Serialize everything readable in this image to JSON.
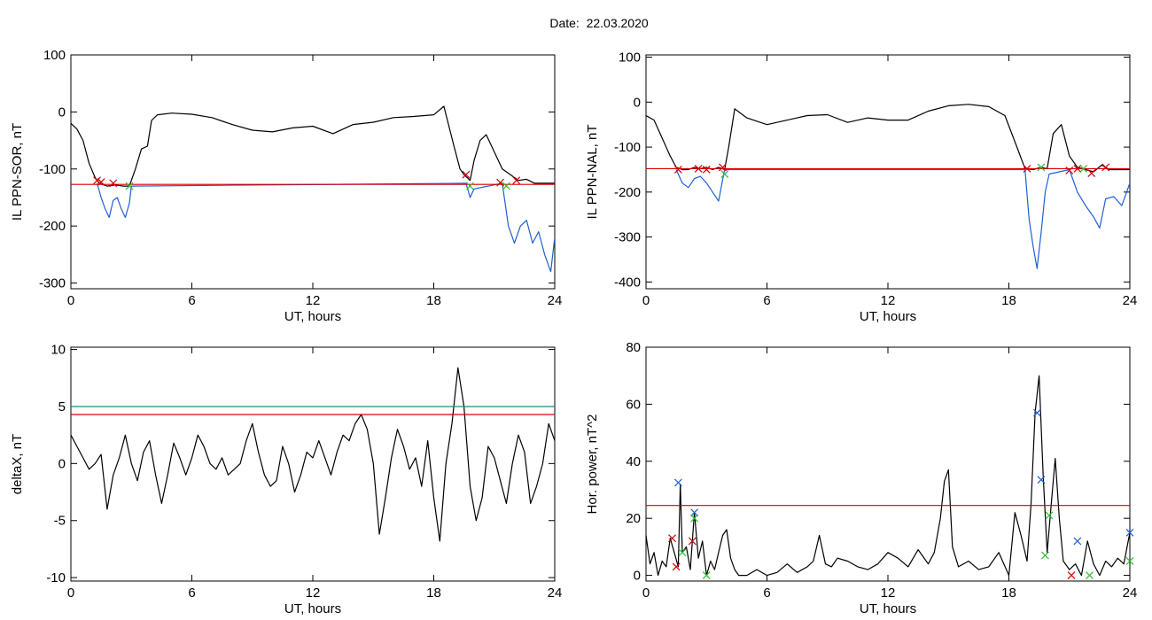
{
  "header": {
    "title": "Date:  22.03.2020"
  },
  "chart_data": [
    {
      "type": "line",
      "xlabel": "UT, hours",
      "ylabel": "IL PPN-SOR, nT",
      "xlim": [
        0,
        24
      ],
      "ylim": [
        -310,
        100
      ],
      "xticks": [
        0,
        6,
        12,
        18,
        24
      ],
      "yticks": [
        100,
        0,
        -100,
        -200,
        -300
      ],
      "series": [
        {
          "color": "#000000",
          "x": [
            0,
            0.3,
            0.6,
            0.9,
            1.2,
            1.4,
            1.8,
            2.2,
            2.6,
            2.9,
            3.2,
            3.5,
            3.8,
            4.0,
            4.3,
            5,
            6,
            7,
            8,
            9,
            10,
            11,
            12,
            13,
            14,
            15,
            16,
            17,
            18,
            18.5,
            19.0,
            19.3,
            19.5,
            19.8,
            20.0,
            20.3,
            20.6,
            21.0,
            21.4,
            21.8,
            22.2,
            22.6,
            23.0,
            23.5,
            23.8,
            24
          ],
          "y": [
            -20,
            -30,
            -50,
            -90,
            -115,
            -125,
            -130,
            -128,
            -130,
            -130,
            -100,
            -65,
            -60,
            -15,
            -5,
            -2,
            -4,
            -10,
            -22,
            -32,
            -35,
            -28,
            -25,
            -38,
            -22,
            -18,
            -10,
            -8,
            -5,
            10,
            -60,
            -100,
            -110,
            -120,
            -85,
            -50,
            -40,
            -70,
            -100,
            -110,
            -120,
            -118,
            -125,
            -125,
            -125,
            -125
          ]
        },
        {
          "color": "#1f5fd6",
          "x": [
            1.3,
            1.5,
            1.7,
            1.9,
            2.1,
            2.3,
            2.5,
            2.7,
            2.9,
            3.0,
            19.6,
            19.8,
            20.0,
            21.4,
            21.7,
            22.0,
            22.3,
            22.6,
            22.9,
            23.2,
            23.5,
            23.8,
            24
          ],
          "y": [
            -125,
            -150,
            -170,
            -185,
            -155,
            -150,
            -170,
            -185,
            -160,
            -130,
            -125,
            -150,
            -135,
            -125,
            -200,
            -230,
            -200,
            -190,
            -230,
            -210,
            -250,
            -280,
            -220
          ]
        }
      ],
      "hlines": [
        {
          "y": -127,
          "color": "#d40000"
        }
      ],
      "markers": [
        {
          "x": 1.3,
          "y": -120,
          "color": "#d40000"
        },
        {
          "x": 1.5,
          "y": -123,
          "color": "#d40000"
        },
        {
          "x": 2.1,
          "y": -125,
          "color": "#d40000"
        },
        {
          "x": 2.9,
          "y": -130,
          "color": "#33bb33"
        },
        {
          "x": 19.6,
          "y": -110,
          "color": "#d40000"
        },
        {
          "x": 19.8,
          "y": -130,
          "color": "#33bb33"
        },
        {
          "x": 21.3,
          "y": -124,
          "color": "#d40000"
        },
        {
          "x": 21.6,
          "y": -130,
          "color": "#33bb33"
        },
        {
          "x": 22.1,
          "y": -120,
          "color": "#d40000"
        }
      ]
    },
    {
      "type": "line",
      "xlabel": "UT, hours",
      "ylabel": "IL PPN-NAL, nT",
      "xlim": [
        0,
        24
      ],
      "ylim": [
        -415,
        105
      ],
      "xticks": [
        0,
        6,
        12,
        18,
        24
      ],
      "yticks": [
        100,
        0,
        -100,
        -200,
        -300,
        -400
      ],
      "series": [
        {
          "color": "#000000",
          "x": [
            0,
            0.4,
            0.8,
            1.2,
            1.5,
            1.8,
            2.1,
            2.4,
            2.7,
            3.0,
            3.3,
            3.6,
            3.9,
            4.1,
            4.4,
            5,
            6,
            7,
            8,
            9,
            10,
            11,
            12,
            13,
            14,
            15,
            16,
            17,
            17.8,
            18.4,
            18.8,
            19.2,
            19.6,
            19.9,
            20.2,
            20.6,
            21.0,
            21.4,
            21.8,
            22.2,
            22.6,
            23.0,
            23.4,
            23.8,
            24
          ],
          "y": [
            -30,
            -40,
            -80,
            -120,
            -145,
            -150,
            -150,
            -145,
            -148,
            -145,
            -150,
            -145,
            -150,
            -100,
            -15,
            -35,
            -50,
            -40,
            -30,
            -28,
            -45,
            -35,
            -40,
            -40,
            -20,
            -8,
            -5,
            -10,
            -30,
            -100,
            -148,
            -150,
            -145,
            -148,
            -70,
            -50,
            -120,
            -145,
            -150,
            -155,
            -140,
            -150,
            -150,
            -150,
            -150
          ]
        },
        {
          "color": "#1f5fd6",
          "x": [
            1.5,
            1.8,
            2.1,
            2.4,
            2.7,
            3.0,
            3.3,
            3.6,
            3.9,
            18.8,
            19.0,
            19.2,
            19.4,
            19.6,
            19.8,
            20.0,
            21.0,
            21.4,
            21.8,
            22.2,
            22.5,
            22.8,
            23.2,
            23.6,
            24
          ],
          "y": [
            -150,
            -180,
            -190,
            -170,
            -165,
            -180,
            -200,
            -220,
            -150,
            -150,
            -260,
            -320,
            -370,
            -290,
            -200,
            -160,
            -150,
            -200,
            -230,
            -255,
            -280,
            -215,
            -210,
            -230,
            -180
          ]
        }
      ],
      "hlines": [
        {
          "y": -148,
          "color": "#d40000"
        }
      ],
      "markers": [
        {
          "x": 1.6,
          "y": -150,
          "color": "#d40000"
        },
        {
          "x": 2.6,
          "y": -148,
          "color": "#d40000"
        },
        {
          "x": 3.0,
          "y": -150,
          "color": "#d40000"
        },
        {
          "x": 3.8,
          "y": -145,
          "color": "#d40000"
        },
        {
          "x": 3.9,
          "y": -160,
          "color": "#33bb33"
        },
        {
          "x": 18.9,
          "y": -148,
          "color": "#d40000"
        },
        {
          "x": 19.6,
          "y": -145,
          "color": "#33bb33"
        },
        {
          "x": 21.0,
          "y": -152,
          "color": "#d40000"
        },
        {
          "x": 21.4,
          "y": -148,
          "color": "#d40000"
        },
        {
          "x": 21.7,
          "y": -148,
          "color": "#33bb33"
        },
        {
          "x": 22.1,
          "y": -158,
          "color": "#d40000"
        },
        {
          "x": 22.8,
          "y": -145,
          "color": "#d40000"
        }
      ]
    },
    {
      "type": "line",
      "xlabel": "UT, hours",
      "ylabel": "deltaX, nT",
      "xlim": [
        0,
        24
      ],
      "ylim": [
        -10.3,
        10.2
      ],
      "xticks": [
        0,
        6,
        12,
        18,
        24
      ],
      "yticks": [
        10,
        5,
        0,
        -5,
        -10
      ],
      "series": [
        {
          "color": "#000000",
          "x": [
            0,
            0.3,
            0.6,
            0.9,
            1.2,
            1.5,
            1.8,
            2.1,
            2.4,
            2.7,
            3.0,
            3.3,
            3.6,
            3.9,
            4.2,
            4.5,
            4.8,
            5.1,
            5.4,
            5.7,
            6.0,
            6.3,
            6.6,
            6.9,
            7.2,
            7.5,
            7.8,
            8.1,
            8.4,
            8.7,
            9.0,
            9.3,
            9.6,
            9.9,
            10.2,
            10.5,
            10.8,
            11.1,
            11.4,
            11.7,
            12.0,
            12.3,
            12.6,
            12.9,
            13.2,
            13.5,
            13.8,
            14.1,
            14.4,
            14.7,
            15.0,
            15.3,
            15.6,
            15.9,
            16.2,
            16.5,
            16.8,
            17.1,
            17.4,
            17.7,
            18.0,
            18.3,
            18.6,
            18.9,
            19.2,
            19.5,
            19.8,
            20.1,
            20.4,
            20.7,
            21.0,
            21.3,
            21.6,
            21.9,
            22.2,
            22.5,
            22.8,
            23.1,
            23.4,
            23.7,
            24
          ],
          "y": [
            2.5,
            1.5,
            0.5,
            -0.5,
            0,
            0.8,
            -4,
            -1,
            0.5,
            2.5,
            0,
            -1.5,
            1,
            2,
            -1,
            -3.5,
            -1,
            1.8,
            0.5,
            -1,
            0.5,
            2.5,
            1.5,
            0,
            -0.5,
            0.5,
            -1,
            -0.5,
            0,
            2,
            3.5,
            1,
            -1,
            -2,
            -1.5,
            1.5,
            0,
            -2.5,
            -1,
            1,
            0.5,
            2,
            0.5,
            -1,
            1,
            2.5,
            2,
            3.5,
            4.3,
            3,
            0,
            -6.2,
            -3,
            0.5,
            3,
            1.5,
            -0.5,
            0.5,
            -2,
            2,
            -3,
            -6.8,
            0,
            3.5,
            8.4,
            5,
            -2,
            -5,
            -3,
            1.5,
            0.5,
            -1.5,
            -3.5,
            0,
            2.5,
            1,
            -3.5,
            -2,
            0,
            3.5,
            2
          ]
        }
      ],
      "hlines": [
        {
          "y": 5,
          "color": "#1a8a8a"
        },
        {
          "y": 4.3,
          "color": "#d40000"
        }
      ],
      "markers": []
    },
    {
      "type": "line",
      "xlabel": "UT, hours",
      "ylabel": "Hor. power, nT^2",
      "xlim": [
        0,
        24
      ],
      "ylim": [
        -2,
        80
      ],
      "xticks": [
        0,
        6,
        12,
        18,
        24
      ],
      "yticks": [
        80,
        60,
        40,
        20,
        0
      ],
      "series": [
        {
          "color": "#000000",
          "x": [
            0,
            0.2,
            0.4,
            0.6,
            0.8,
            1.0,
            1.2,
            1.4,
            1.6,
            1.7,
            1.8,
            2.0,
            2.2,
            2.4,
            2.6,
            2.8,
            3.0,
            3.2,
            3.4,
            3.6,
            3.8,
            4.0,
            4.2,
            4.4,
            4.6,
            5.0,
            5.5,
            6.0,
            6.5,
            7.0,
            7.5,
            8.0,
            8.3,
            8.6,
            8.9,
            9.2,
            9.5,
            10.0,
            10.5,
            11.0,
            11.5,
            12.0,
            12.5,
            13.0,
            13.5,
            14.0,
            14.3,
            14.6,
            14.8,
            15.0,
            15.2,
            15.5,
            16.0,
            16.5,
            17.0,
            17.5,
            18.0,
            18.3,
            18.6,
            18.9,
            19.1,
            19.3,
            19.5,
            19.7,
            19.9,
            20.1,
            20.3,
            20.5,
            20.7,
            21.0,
            21.3,
            21.6,
            21.9,
            22.2,
            22.5,
            22.8,
            23.1,
            23.4,
            23.7,
            24
          ],
          "y": [
            14,
            4,
            8,
            0,
            5,
            3,
            13,
            8,
            3,
            32,
            8,
            10,
            2,
            22,
            6,
            12,
            0,
            5,
            2,
            8,
            14,
            16,
            6,
            2,
            0,
            0,
            2,
            0,
            1,
            4,
            1,
            3,
            5,
            14,
            4,
            3,
            6,
            5,
            3,
            2,
            4,
            8,
            6,
            3,
            9,
            4,
            8,
            20,
            33,
            37,
            10,
            3,
            5,
            2,
            3,
            8,
            0,
            22,
            14,
            5,
            25,
            57,
            70,
            35,
            8,
            25,
            41,
            20,
            5,
            2,
            4,
            0,
            12,
            4,
            0,
            5,
            3,
            6,
            4,
            15
          ]
        }
      ],
      "hlines": [
        {
          "y": 24.5,
          "color": "#d40000"
        }
      ],
      "markers": [
        {
          "x": 1.3,
          "y": 13,
          "color": "#d40000"
        },
        {
          "x": 1.5,
          "y": 3,
          "color": "#d40000"
        },
        {
          "x": 1.6,
          "y": 32.5,
          "color": "#1f5fd6"
        },
        {
          "x": 1.8,
          "y": 8,
          "color": "#33bb33"
        },
        {
          "x": 2.3,
          "y": 12,
          "color": "#d40000"
        },
        {
          "x": 2.4,
          "y": 22,
          "color": "#1f5fd6"
        },
        {
          "x": 2.4,
          "y": 20,
          "color": "#33bb33"
        },
        {
          "x": 3.0,
          "y": 0,
          "color": "#33bb33"
        },
        {
          "x": 19.4,
          "y": 57,
          "color": "#1f5fd6"
        },
        {
          "x": 19.6,
          "y": 33.5,
          "color": "#1f5fd6"
        },
        {
          "x": 19.8,
          "y": 7,
          "color": "#33bb33"
        },
        {
          "x": 20.0,
          "y": 21,
          "color": "#33bb33"
        },
        {
          "x": 21.4,
          "y": 12,
          "color": "#1f5fd6"
        },
        {
          "x": 21.1,
          "y": 0,
          "color": "#d40000"
        },
        {
          "x": 22.0,
          "y": 0,
          "color": "#33bb33"
        },
        {
          "x": 24.0,
          "y": 15,
          "color": "#1f5fd6"
        },
        {
          "x": 24.0,
          "y": 5,
          "color": "#33bb33"
        }
      ]
    }
  ]
}
